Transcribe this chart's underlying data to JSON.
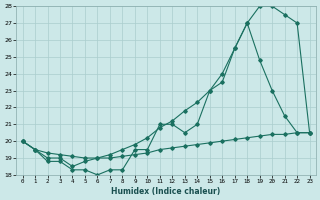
{
  "xlabel": "Humidex (Indice chaleur)",
  "background_color": "#cce8e8",
  "grid_color": "#aacece",
  "line_color": "#1a7060",
  "xlim": [
    -0.5,
    23.5
  ],
  "ylim": [
    18,
    28
  ],
  "xticks": [
    0,
    1,
    2,
    3,
    4,
    5,
    6,
    7,
    8,
    9,
    10,
    11,
    12,
    13,
    14,
    15,
    16,
    17,
    18,
    19,
    20,
    21,
    22,
    23
  ],
  "yticks": [
    18,
    19,
    20,
    21,
    22,
    23,
    24,
    25,
    26,
    27,
    28
  ],
  "series": [
    {
      "x": [
        0,
        1,
        2,
        3,
        4,
        5,
        6,
        7,
        8,
        9,
        10,
        11,
        12,
        13,
        14,
        15,
        16,
        17,
        18,
        19,
        20,
        21,
        22,
        23
      ],
      "y": [
        20.0,
        19.5,
        19.0,
        19.0,
        18.5,
        18.8,
        19.0,
        19.2,
        19.5,
        19.8,
        20.2,
        20.8,
        21.2,
        21.8,
        22.3,
        23.0,
        24.0,
        25.5,
        27.0,
        28.0,
        28.0,
        27.5,
        27.0,
        20.5
      ]
    },
    {
      "x": [
        0,
        1,
        2,
        3,
        4,
        5,
        6,
        7,
        8,
        9,
        10,
        11,
        12,
        13,
        14,
        15,
        16,
        17,
        18,
        19,
        20,
        21,
        22,
        23
      ],
      "y": [
        20.0,
        19.5,
        18.8,
        18.8,
        18.3,
        18.3,
        18.0,
        18.3,
        18.3,
        19.5,
        19.5,
        21.0,
        21.0,
        20.5,
        21.0,
        23.0,
        23.5,
        25.5,
        27.0,
        24.8,
        23.0,
        21.5,
        20.5,
        20.5
      ]
    },
    {
      "x": [
        0,
        1,
        2,
        3,
        4,
        5,
        6,
        7,
        8,
        9,
        10,
        11,
        12,
        13,
        14,
        15,
        16,
        17,
        18,
        19,
        20,
        21,
        22,
        23
      ],
      "y": [
        20.0,
        19.5,
        19.3,
        19.2,
        19.1,
        19.0,
        19.0,
        19.0,
        19.1,
        19.2,
        19.3,
        19.5,
        19.6,
        19.7,
        19.8,
        19.9,
        20.0,
        20.1,
        20.2,
        20.3,
        20.4,
        20.4,
        20.5,
        20.5
      ]
    }
  ]
}
